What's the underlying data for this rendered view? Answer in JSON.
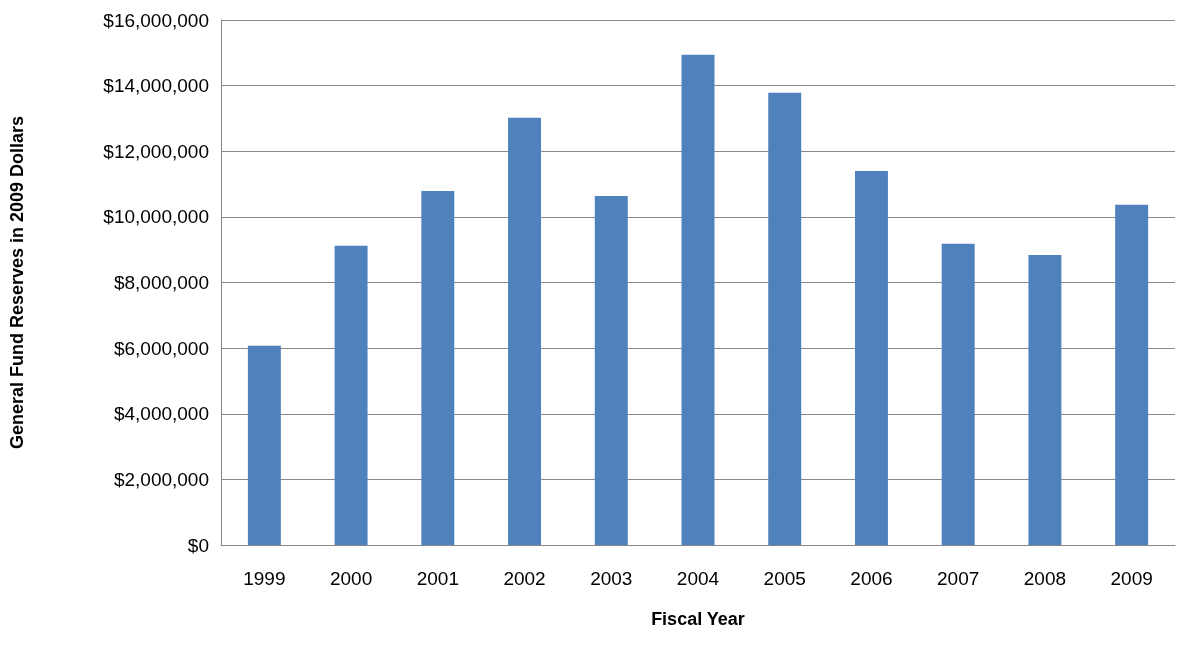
{
  "chart_data": {
    "type": "bar",
    "xlabel": "Fiscal Year",
    "ylabel": "General Fund Reserves in 2009 Dollars",
    "categories": [
      "1999",
      "2000",
      "2001",
      "2002",
      "2003",
      "2004",
      "2005",
      "2006",
      "2007",
      "2008",
      "2009"
    ],
    "values": [
      6070000,
      9120000,
      10790000,
      13020000,
      10640000,
      14940000,
      13780000,
      11400000,
      9180000,
      8840000,
      10370000
    ],
    "color": "#4f81bd",
    "ylim": [
      0,
      16000000
    ],
    "yticks": [
      {
        "value": 0,
        "label": "$0"
      },
      {
        "value": 2000000,
        "label": "$2,000,000"
      },
      {
        "value": 4000000,
        "label": "$4,000,000"
      },
      {
        "value": 6000000,
        "label": "$6,000,000"
      },
      {
        "value": 8000000,
        "label": "$8,000,000"
      },
      {
        "value": 10000000,
        "label": "$10,000,000"
      },
      {
        "value": 12000000,
        "label": "$12,000,000"
      },
      {
        "value": 14000000,
        "label": "$14,000,000"
      },
      {
        "value": 16000000,
        "label": "$16,000,000"
      }
    ],
    "grid": "y"
  }
}
